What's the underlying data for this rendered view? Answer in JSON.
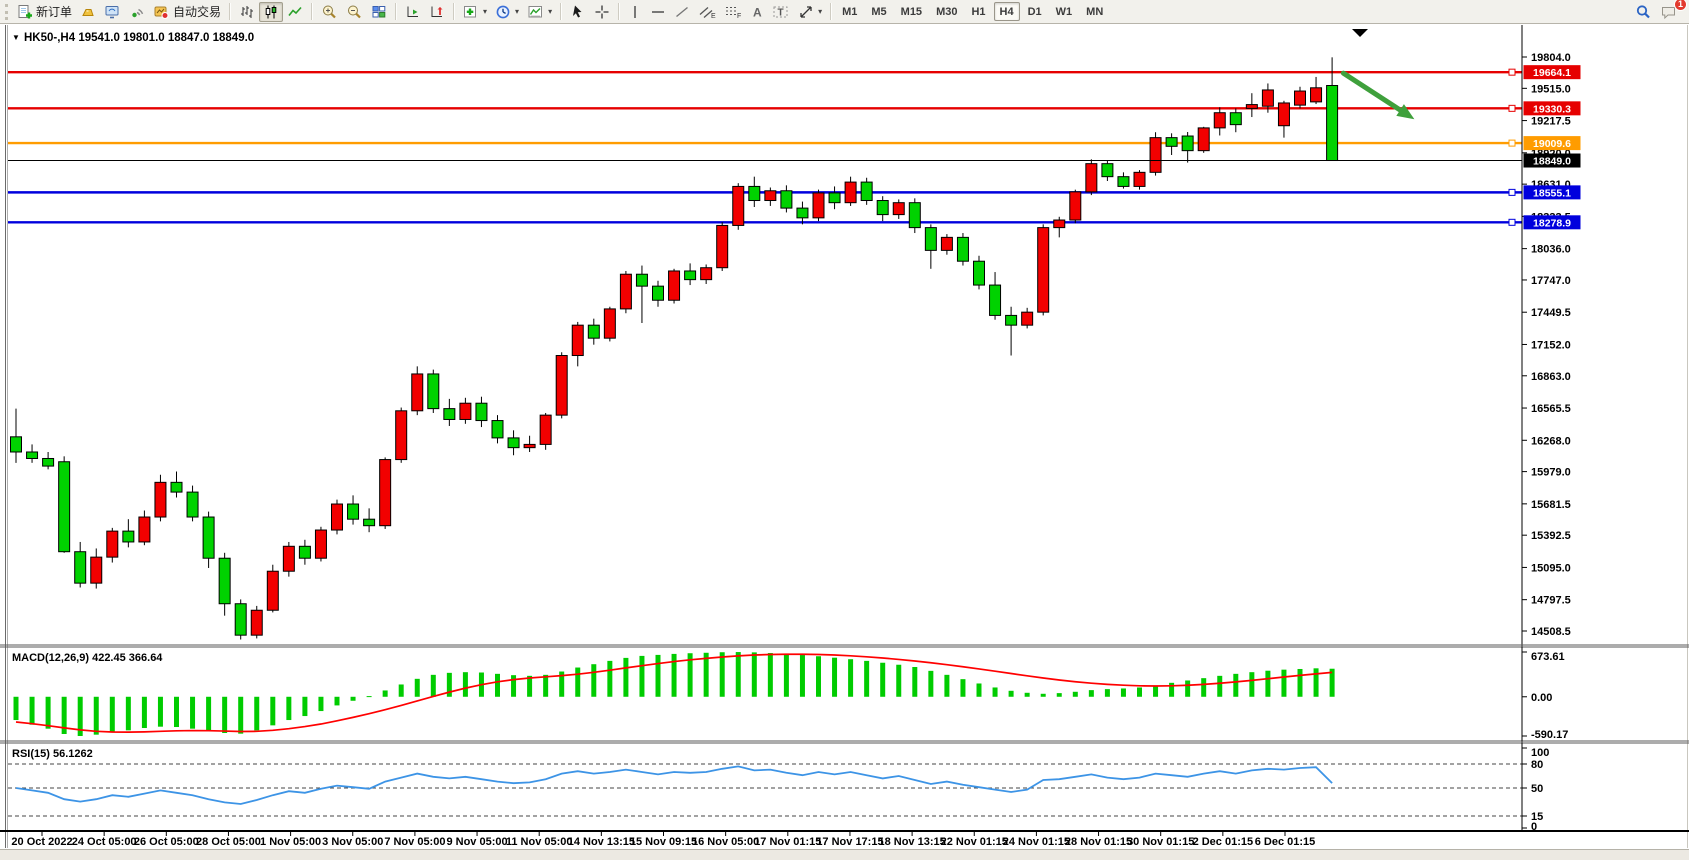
{
  "toolbar": {
    "new_order_label": "新订单",
    "autotrade_label": "自动交易",
    "timeframes": [
      "M1",
      "M5",
      "M15",
      "M30",
      "H1",
      "H4",
      "D1",
      "W1",
      "MN"
    ],
    "active_timeframe": "H4",
    "notification_count": "1"
  },
  "chart": {
    "symbol_period": "HK50-,H4",
    "ohlc_text": "19541.0 19801.0 18847.0 18849.0",
    "bull_color": "#f20000",
    "bear_color": "#00d200",
    "y_axis": {
      "top_value": 19804.0,
      "bottom_value": 14508.5,
      "labels": [
        "19804.0",
        "19515.0",
        "19217.5",
        "18920.0",
        "18631.0",
        "18333.5",
        "18036.0",
        "17747.0",
        "17449.5",
        "17152.0",
        "16863.0",
        "16565.5",
        "16268.0",
        "15979.0",
        "15681.5",
        "15392.5",
        "15095.0",
        "14797.5",
        "14508.5"
      ]
    },
    "x_axis": {
      "labels": [
        "20 Oct 2022",
        "24 Oct 05:00",
        "26 Oct 05:00",
        "28 Oct 05:00",
        "1 Nov 05:00",
        "3 Nov 05:00",
        "7 Nov 05:00",
        "9 Nov 05:00",
        "11 Nov 05:00",
        "14 Nov 13:15",
        "15 Nov 09:15",
        "16 Nov 05:00",
        "17 Nov 01:15",
        "17 Nov 17:15",
        "18 Nov 13:15",
        "22 Nov 01:15",
        "24 Nov 01:15",
        "28 Nov 01:15",
        "30 Nov 01:15",
        "2 Dec 01:15",
        "6 Dec 01:15"
      ]
    },
    "levels": [
      {
        "label": "19664.1",
        "value": 19664.1,
        "color": "#e60000"
      },
      {
        "label": "19330.3",
        "value": 19330.3,
        "color": "#e60000"
      },
      {
        "label": "19009.6",
        "value": 19009.6,
        "color": "#ff9c00"
      },
      {
        "label": "18555.1",
        "value": 18555.1,
        "color": "#0000dd"
      },
      {
        "label": "18278.9",
        "value": 18278.9,
        "color": "#0000dd"
      }
    ],
    "current_price": {
      "label": "18849.0",
      "value": 18849.0,
      "color": "#000000"
    },
    "annotation_arrow": {
      "color": "#3fa03c",
      "from": {
        "bar": 82.7,
        "price": 19655
      },
      "to": {
        "bar": 86.5,
        "price": 19290
      }
    },
    "candles": [
      [
        16300,
        16560,
        16060,
        16160
      ],
      [
        16160,
        16230,
        16060,
        16100
      ],
      [
        16100,
        16160,
        16000,
        16030
      ],
      [
        16070,
        16120,
        15230,
        15240
      ],
      [
        15240,
        15330,
        14910,
        14950
      ],
      [
        14950,
        15270,
        14900,
        15190
      ],
      [
        15190,
        15460,
        15140,
        15430
      ],
      [
        15430,
        15540,
        15280,
        15330
      ],
      [
        15330,
        15620,
        15300,
        15560
      ],
      [
        15560,
        15950,
        15520,
        15880
      ],
      [
        15880,
        15980,
        15740,
        15790
      ],
      [
        15790,
        15850,
        15520,
        15560
      ],
      [
        15560,
        15610,
        15090,
        15180
      ],
      [
        15180,
        15230,
        14650,
        14760
      ],
      [
        14760,
        14800,
        14430,
        14470
      ],
      [
        14470,
        14740,
        14440,
        14700
      ],
      [
        14700,
        15120,
        14680,
        15060
      ],
      [
        15060,
        15330,
        15010,
        15290
      ],
      [
        15290,
        15350,
        15120,
        15180
      ],
      [
        15180,
        15470,
        15150,
        15440
      ],
      [
        15440,
        15720,
        15400,
        15680
      ],
      [
        15680,
        15760,
        15490,
        15540
      ],
      [
        15540,
        15640,
        15420,
        15480
      ],
      [
        15480,
        16110,
        15450,
        16090
      ],
      [
        16090,
        16570,
        16060,
        16540
      ],
      [
        16540,
        16950,
        16500,
        16880
      ],
      [
        16880,
        16920,
        16520,
        16560
      ],
      [
        16560,
        16650,
        16400,
        16460
      ],
      [
        16460,
        16660,
        16420,
        16610
      ],
      [
        16610,
        16670,
        16390,
        16450
      ],
      [
        16450,
        16500,
        16240,
        16290
      ],
      [
        16290,
        16360,
        16130,
        16200
      ],
      [
        16200,
        16310,
        16160,
        16230
      ],
      [
        16230,
        16520,
        16180,
        16500
      ],
      [
        16500,
        17080,
        16470,
        17050
      ],
      [
        17050,
        17360,
        16950,
        17330
      ],
      [
        17330,
        17390,
        17150,
        17210
      ],
      [
        17210,
        17500,
        17180,
        17480
      ],
      [
        17480,
        17830,
        17440,
        17800
      ],
      [
        17800,
        17880,
        17350,
        17690
      ],
      [
        17690,
        17740,
        17500,
        17560
      ],
      [
        17560,
        17850,
        17530,
        17830
      ],
      [
        17830,
        17900,
        17700,
        17750
      ],
      [
        17750,
        17890,
        17710,
        17860
      ],
      [
        17860,
        18280,
        17830,
        18250
      ],
      [
        18250,
        18640,
        18210,
        18610
      ],
      [
        18610,
        18700,
        18420,
        18480
      ],
      [
        18480,
        18600,
        18430,
        18570
      ],
      [
        18570,
        18620,
        18370,
        18410
      ],
      [
        18410,
        18470,
        18260,
        18320
      ],
      [
        18320,
        18580,
        18290,
        18550
      ],
      [
        18550,
        18610,
        18400,
        18460
      ],
      [
        18460,
        18700,
        18430,
        18650
      ],
      [
        18650,
        18690,
        18440,
        18480
      ],
      [
        18480,
        18520,
        18290,
        18350
      ],
      [
        18350,
        18490,
        18310,
        18460
      ],
      [
        18460,
        18500,
        18180,
        18230
      ],
      [
        18230,
        18260,
        17850,
        18020
      ],
      [
        18020,
        18170,
        17980,
        18140
      ],
      [
        18140,
        18180,
        17880,
        17920
      ],
      [
        17920,
        17970,
        17660,
        17700
      ],
      [
        17700,
        17820,
        17380,
        17420
      ],
      [
        17420,
        17500,
        17050,
        17330
      ],
      [
        17330,
        17490,
        17300,
        17450
      ],
      [
        17450,
        18260,
        17420,
        18230
      ],
      [
        18230,
        18330,
        18140,
        18300
      ],
      [
        18300,
        18580,
        18270,
        18560
      ],
      [
        18560,
        18860,
        18530,
        18820
      ],
      [
        18820,
        18850,
        18660,
        18700
      ],
      [
        18700,
        18740,
        18590,
        18610
      ],
      [
        18610,
        18760,
        18580,
        18740
      ],
      [
        18740,
        19110,
        18710,
        19060
      ],
      [
        19060,
        19100,
        18900,
        18980
      ],
      [
        19075,
        19112,
        18830,
        18940
      ],
      [
        18940,
        19160,
        18920,
        19150
      ],
      [
        19150,
        19340,
        19080,
        19290
      ],
      [
        19290,
        19330,
        19110,
        19180
      ],
      [
        19330,
        19470,
        19250,
        19365
      ],
      [
        19350,
        19560,
        19290,
        19500
      ],
      [
        19170,
        19400,
        19060,
        19380
      ],
      [
        19360,
        19530,
        19330,
        19490
      ],
      [
        19390,
        19620,
        19370,
        19520
      ],
      [
        19541,
        19801,
        18847,
        18849
      ]
    ]
  },
  "indicators": {
    "macd": {
      "label": "MACD(12,26,9) 422.45 366.64",
      "scale_labels": [
        "673.61",
        "0.00",
        "-590.17"
      ],
      "scale_max": 673.61,
      "scale_min": -590.17,
      "hist_color": "#00cc00",
      "signal_color": "#ff0000",
      "histogram": [
        -350,
        -420,
        -480,
        -560,
        -590,
        -570,
        -535,
        -505,
        -470,
        -450,
        -455,
        -480,
        -515,
        -545,
        -555,
        -505,
        -430,
        -350,
        -290,
        -215,
        -130,
        -60,
        10,
        95,
        185,
        270,
        330,
        360,
        370,
        365,
        345,
        325,
        315,
        330,
        380,
        440,
        490,
        540,
        585,
        615,
        630,
        645,
        655,
        662,
        670,
        673,
        668,
        658,
        645,
        628,
        610,
        588,
        565,
        540,
        512,
        482,
        448,
        390,
        330,
        265,
        200,
        140,
        90,
        60,
        45,
        55,
        75,
        100,
        115,
        125,
        140,
        170,
        210,
        245,
        280,
        315,
        345,
        370,
        392,
        408,
        418,
        428,
        422
      ],
      "signal": [
        -380,
        -405,
        -435,
        -468,
        -498,
        -520,
        -530,
        -532,
        -528,
        -520,
        -512,
        -508,
        -510,
        -516,
        -522,
        -520,
        -505,
        -480,
        -448,
        -410,
        -362,
        -310,
        -255,
        -195,
        -130,
        -62,
        5,
        70,
        130,
        182,
        225,
        258,
        282,
        300,
        318,
        340,
        368,
        400,
        435,
        468,
        500,
        530,
        556,
        578,
        598,
        615,
        628,
        636,
        640,
        640,
        636,
        628,
        616,
        601,
        583,
        562,
        538,
        512,
        483,
        452,
        419,
        385,
        350,
        315,
        282,
        252,
        226,
        204,
        187,
        174,
        165,
        162,
        165,
        173,
        186,
        203,
        224,
        247,
        272,
        297,
        322,
        345,
        367
      ]
    },
    "rsi": {
      "label": "RSI(15) 56.1262",
      "scale_labels": [
        "100",
        "80",
        "50",
        "15",
        "0"
      ],
      "dashed_levels": [
        80,
        50,
        15
      ],
      "line_color": "#3d94e6",
      "range": [
        0,
        100
      ],
      "values": [
        50,
        47,
        44,
        36,
        33,
        36,
        41,
        39,
        43,
        47,
        44,
        41,
        36,
        32,
        30,
        35,
        41,
        46,
        44,
        49,
        53,
        51,
        49,
        58,
        63,
        68,
        64,
        62,
        64,
        61,
        58,
        56,
        57,
        61,
        68,
        71,
        68,
        70,
        73,
        70,
        67,
        70,
        69,
        70,
        74,
        77,
        72,
        73,
        69,
        66,
        70,
        67,
        70,
        66,
        62,
        65,
        60,
        55,
        58,
        54,
        51,
        48,
        45,
        48,
        60,
        61,
        64,
        67,
        63,
        61,
        63,
        68,
        66,
        64,
        68,
        71,
        68,
        72,
        74,
        73,
        75,
        76,
        56.1
      ]
    }
  }
}
